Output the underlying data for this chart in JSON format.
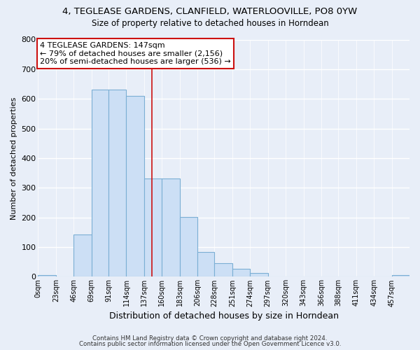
{
  "title": "4, TEGLEASE GARDENS, CLANFIELD, WATERLOOVILLE, PO8 0YW",
  "subtitle": "Size of property relative to detached houses in Horndean",
  "xlabel": "Distribution of detached houses by size in Horndean",
  "ylabel": "Number of detached properties",
  "bar_labels": [
    "0sqm",
    "23sqm",
    "46sqm",
    "69sqm",
    "91sqm",
    "114sqm",
    "137sqm",
    "160sqm",
    "183sqm",
    "206sqm",
    "228sqm",
    "251sqm",
    "274sqm",
    "297sqm",
    "320sqm",
    "343sqm",
    "366sqm",
    "388sqm",
    "411sqm",
    "434sqm",
    "457sqm"
  ],
  "bar_values": [
    5,
    0,
    143,
    632,
    631,
    609,
    332,
    332,
    201,
    84,
    46,
    27,
    12,
    0,
    0,
    0,
    0,
    0,
    0,
    0,
    5
  ],
  "bin_edges": [
    0,
    23,
    46,
    69,
    91,
    114,
    137,
    160,
    183,
    206,
    228,
    251,
    274,
    297,
    320,
    343,
    366,
    388,
    411,
    434,
    457,
    480
  ],
  "bar_color": "#ccdff5",
  "bar_edge_color": "#7bafd4",
  "vline_x": 147,
  "vline_color": "#cc1111",
  "ylim": [
    0,
    800
  ],
  "yticks": [
    0,
    100,
    200,
    300,
    400,
    500,
    600,
    700,
    800
  ],
  "annotation_title": "4 TEGLEASE GARDENS: 147sqm",
  "annotation_line1": "← 79% of detached houses are smaller (2,156)",
  "annotation_line2": "20% of semi-detached houses are larger (536) →",
  "annotation_box_color": "#ffffff",
  "annotation_box_edge_color": "#cc1111",
  "footer1": "Contains HM Land Registry data © Crown copyright and database right 2024.",
  "footer2": "Contains public sector information licensed under the Open Government Licence v3.0.",
  "background_color": "#e8eef8",
  "grid_color": "#ffffff",
  "plot_bg_color": "#e8eef8"
}
